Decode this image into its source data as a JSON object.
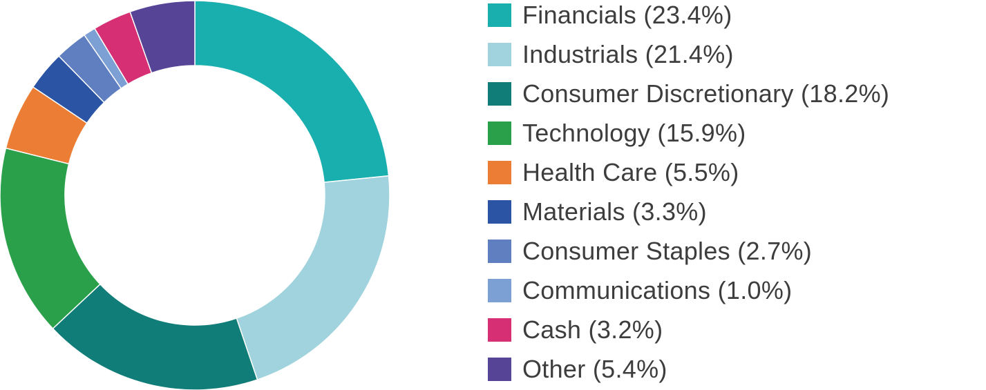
{
  "chart_data": {
    "type": "pie",
    "variant": "donut",
    "title": "",
    "legend_position": "right",
    "slices": [
      {
        "label": "Financials (23.4%)",
        "value": 23.4,
        "color": "#1aafaf"
      },
      {
        "label": "Industrials (21.4%)",
        "value": 21.4,
        "color": "#a0d3dd"
      },
      {
        "label": "Consumer Discretionary (18.2%)",
        "value": 18.2,
        "color": "#117d78"
      },
      {
        "label": "Technology (15.9%)",
        "value": 15.9,
        "color": "#2aa04a"
      },
      {
        "label": "Health Care (5.5%)",
        "value": 5.5,
        "color": "#ec7d34"
      },
      {
        "label": "Materials (3.3%)",
        "value": 3.3,
        "color": "#2b54a5"
      },
      {
        "label": "Consumer Staples (2.7%)",
        "value": 2.7,
        "color": "#5f7fc0"
      },
      {
        "label": "Communications (1.0%)",
        "value": 1.0,
        "color": "#7c9fd4"
      },
      {
        "label": "Cash (3.2%)",
        "value": 3.2,
        "color": "#d72f74"
      },
      {
        "label": "Other (5.4%)",
        "value": 5.4,
        "color": "#564597"
      }
    ]
  }
}
